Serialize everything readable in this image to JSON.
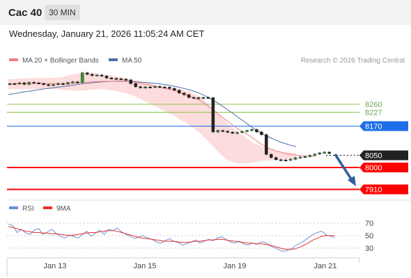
{
  "header": {
    "symbol": "Cac 40",
    "timeframe": "30 MIN"
  },
  "datetime": "Wednesday, January 21, 2026 11:05:24 AM CET",
  "legend": {
    "ma20": "MA 20 + Bollinger Bands",
    "ma50": "MA 50",
    "copyright": "Research © 2026 Trading Central"
  },
  "rsi_legend": {
    "rsi": "RSI",
    "ma": "9MA"
  },
  "colors": {
    "ma20": "#f08080",
    "ma50": "#4a6fa5",
    "bollinger": "#fbd6d6",
    "support": "#ff0000",
    "pivot": "#1e6ee8",
    "resist": "#8bc34a",
    "arrow": "#2f5f9a",
    "rsi": "#6f8fd8",
    "rsi_ma": "#e53030"
  },
  "chart_data": {
    "type": "candlestick",
    "x_labels": [
      "Jan 13",
      "Jan 15",
      "Jan 19",
      "Jan 21"
    ],
    "ylim": [
      7880,
      8420
    ],
    "closes": [
      8345,
      8344,
      8348,
      8342,
      8350,
      8348,
      8345,
      8341,
      8338,
      8341,
      8345,
      8343,
      8349,
      8352,
      8350,
      8389,
      8383,
      8378,
      8380,
      8376,
      8368,
      8366,
      8365,
      8363,
      8360,
      8345,
      8332,
      8328,
      8331,
      8330,
      8333,
      8331,
      8330,
      8325,
      8318,
      8306,
      8299,
      8288,
      8287,
      8285,
      8288,
      8287,
      8146,
      8152,
      8149,
      8145,
      8141,
      8144,
      8148,
      8152,
      8156,
      8146,
      8135,
      8054,
      8041,
      8032,
      8031,
      8030,
      8034,
      8040,
      8043,
      8045,
      8050,
      8055,
      8060,
      8063,
      8058
    ],
    "ma20": [
      8342,
      8344,
      8345,
      8345,
      8346,
      8346,
      8346,
      8346,
      8345,
      8345,
      8345,
      8345,
      8346,
      8347,
      8347,
      8349,
      8351,
      8352,
      8353,
      8354,
      8354,
      8354,
      8354,
      8354,
      8354,
      8352,
      8350,
      8346,
      8342,
      8339,
      8334,
      8330,
      8326,
      8321,
      8317,
      8309,
      8302,
      8294,
      8286,
      8278,
      8266,
      8252,
      8237,
      8220,
      8205,
      8190,
      8174,
      8160,
      8148,
      8136,
      8123,
      8108,
      8094,
      8083,
      8075,
      8068,
      8062,
      8057,
      8054,
      8051,
      8049,
      8047,
      8046,
      8046
    ],
    "ma50": [
      8300,
      8303,
      8306,
      8310,
      8313,
      8316,
      8319,
      8322,
      8325,
      8327,
      8330,
      8332,
      8335,
      8338,
      8341,
      8344,
      8346,
      8348,
      8350,
      8352,
      8353,
      8354,
      8355,
      8355,
      8355,
      8354,
      8353,
      8351,
      8350,
      8348,
      8346,
      8344,
      8341,
      8338,
      8334,
      8330,
      8325,
      8320,
      8314,
      8307,
      8298,
      8288,
      8276,
      8264,
      8251,
      8237,
      8223,
      8208,
      8194,
      8179,
      8165,
      8152,
      8140,
      8130,
      8120,
      8111,
      8103,
      8097,
      8091,
      8086
    ],
    "bollinger_upper": [
      8363,
      8364,
      8365,
      8366,
      8367,
      8368,
      8368,
      8368,
      8368,
      8369,
      8370,
      8372,
      8376,
      8382,
      8386,
      8389,
      8390,
      8390,
      8388,
      8385,
      8382,
      8378,
      8374,
      8371,
      8368,
      8364,
      8360,
      8356,
      8351,
      8346,
      8340,
      8335,
      8330,
      8327,
      8325,
      8322,
      8318,
      8314,
      8303,
      8294,
      8280,
      8260,
      8240,
      8220,
      8200,
      8180,
      8162,
      8146,
      8132,
      8118,
      8105,
      8094,
      8086,
      8080,
      8074,
      8070,
      8066,
      8063,
      8060,
      8060
    ],
    "bollinger_lower": [
      8321,
      8322,
      8322,
      8322,
      8322,
      8323,
      8323,
      8323,
      8323,
      8323,
      8322,
      8320,
      8318,
      8316,
      8315,
      8316,
      8318,
      8320,
      8322,
      8322,
      8320,
      8318,
      8314,
      8310,
      8306,
      8300,
      8292,
      8282,
      8272,
      8262,
      8252,
      8242,
      8232,
      8222,
      8212,
      8200,
      8188,
      8176,
      8162,
      8146,
      8128,
      8108,
      8086,
      8064,
      8045,
      8030,
      8022,
      8018,
      8017,
      8018,
      8020,
      8023,
      8026,
      8028,
      8030,
      8031,
      8032,
      8033,
      8034,
      8034
    ],
    "levels": [
      {
        "value": 8260,
        "label": "8260",
        "type": "resistance"
      },
      {
        "value": 8227,
        "label": "8227",
        "type": "resistance"
      },
      {
        "value": 8170,
        "label": "8170",
        "type": "pivot"
      },
      {
        "value": 8050,
        "label": "8050",
        "type": "last"
      },
      {
        "value": 8000,
        "label": "8000",
        "type": "support"
      },
      {
        "value": 7910,
        "label": "7910",
        "type": "support"
      }
    ],
    "arrow": {
      "from": 8050,
      "to": 7910
    },
    "rsi": {
      "ylim": [
        20,
        80
      ],
      "ticks": [
        "70",
        "50",
        "30"
      ],
      "values": [
        68,
        66,
        55,
        60,
        54,
        52,
        59,
        61,
        52,
        56,
        60,
        53,
        49,
        46,
        51,
        49,
        46,
        52,
        57,
        49,
        54,
        59,
        52,
        60,
        58,
        62,
        56,
        52,
        49,
        45,
        48,
        50,
        46,
        44,
        40,
        38,
        42,
        45,
        41,
        39,
        35,
        37,
        40,
        43,
        38,
        41,
        44,
        42,
        46,
        48,
        44,
        40,
        38,
        41,
        37,
        35,
        38,
        36,
        40,
        39,
        34,
        31,
        28,
        25,
        26,
        29,
        34,
        38,
        42,
        47,
        52,
        55,
        57,
        51,
        49,
        47
      ],
      "ma": [
        64,
        63,
        61,
        59,
        57,
        56,
        55,
        55,
        54,
        54,
        53,
        53,
        52,
        51,
        50,
        51,
        52,
        53,
        54,
        55,
        55,
        56,
        57,
        58,
        58,
        57,
        55,
        53,
        51,
        49,
        47,
        46,
        45,
        44,
        43,
        42,
        41,
        41,
        41,
        40,
        39,
        39,
        40,
        41,
        41,
        42,
        43,
        43,
        44,
        44,
        43,
        42,
        41,
        40,
        39,
        38,
        38,
        37,
        37,
        36,
        35,
        33,
        31,
        29,
        28,
        28,
        29,
        32,
        35,
        39,
        43,
        46,
        49,
        50,
        50,
        50
      ]
    }
  }
}
